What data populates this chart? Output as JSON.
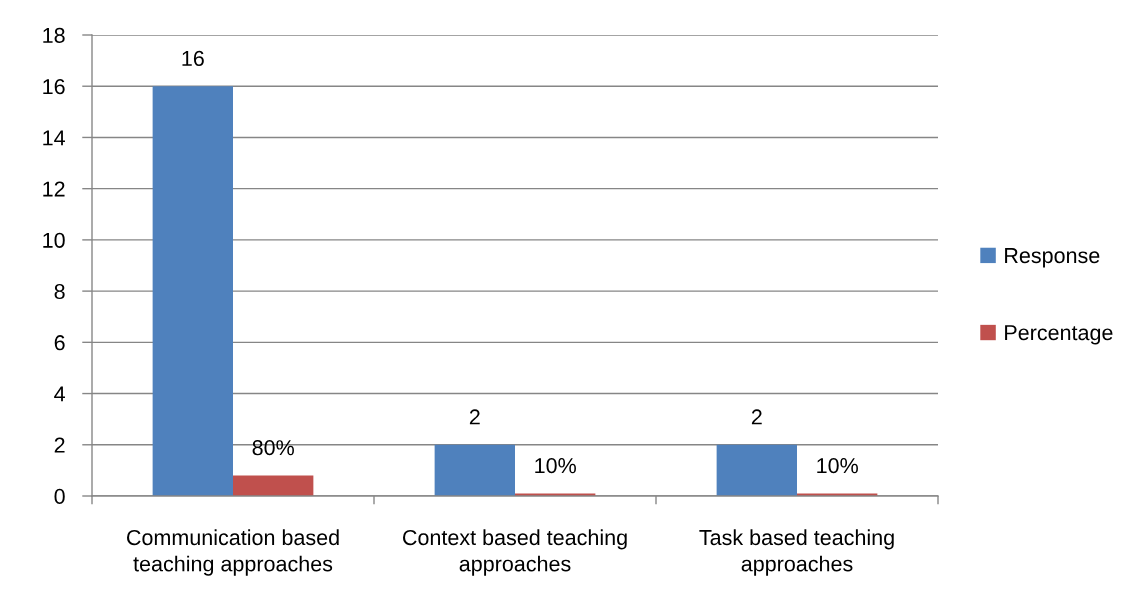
{
  "chart_data": {
    "type": "bar",
    "categories": [
      "Communication based\nteaching approaches",
      "Context based teaching\napproaches",
      "Task based teaching\napproaches"
    ],
    "series": [
      {
        "name": "Response",
        "color": "#4f81bd",
        "values": [
          16,
          2,
          2
        ],
        "value_labels": [
          "16",
          "2",
          "2"
        ]
      },
      {
        "name": "Percentage",
        "color": "#c0504d",
        "values": [
          0.8,
          0.1,
          0.1
        ],
        "value_labels": [
          "80%",
          "10%",
          "10%"
        ]
      }
    ],
    "ylim": [
      0,
      18
    ],
    "yticks": [
      0,
      2,
      4,
      6,
      8,
      10,
      12,
      14,
      16,
      18
    ],
    "grid": "y",
    "legend": "right"
  }
}
